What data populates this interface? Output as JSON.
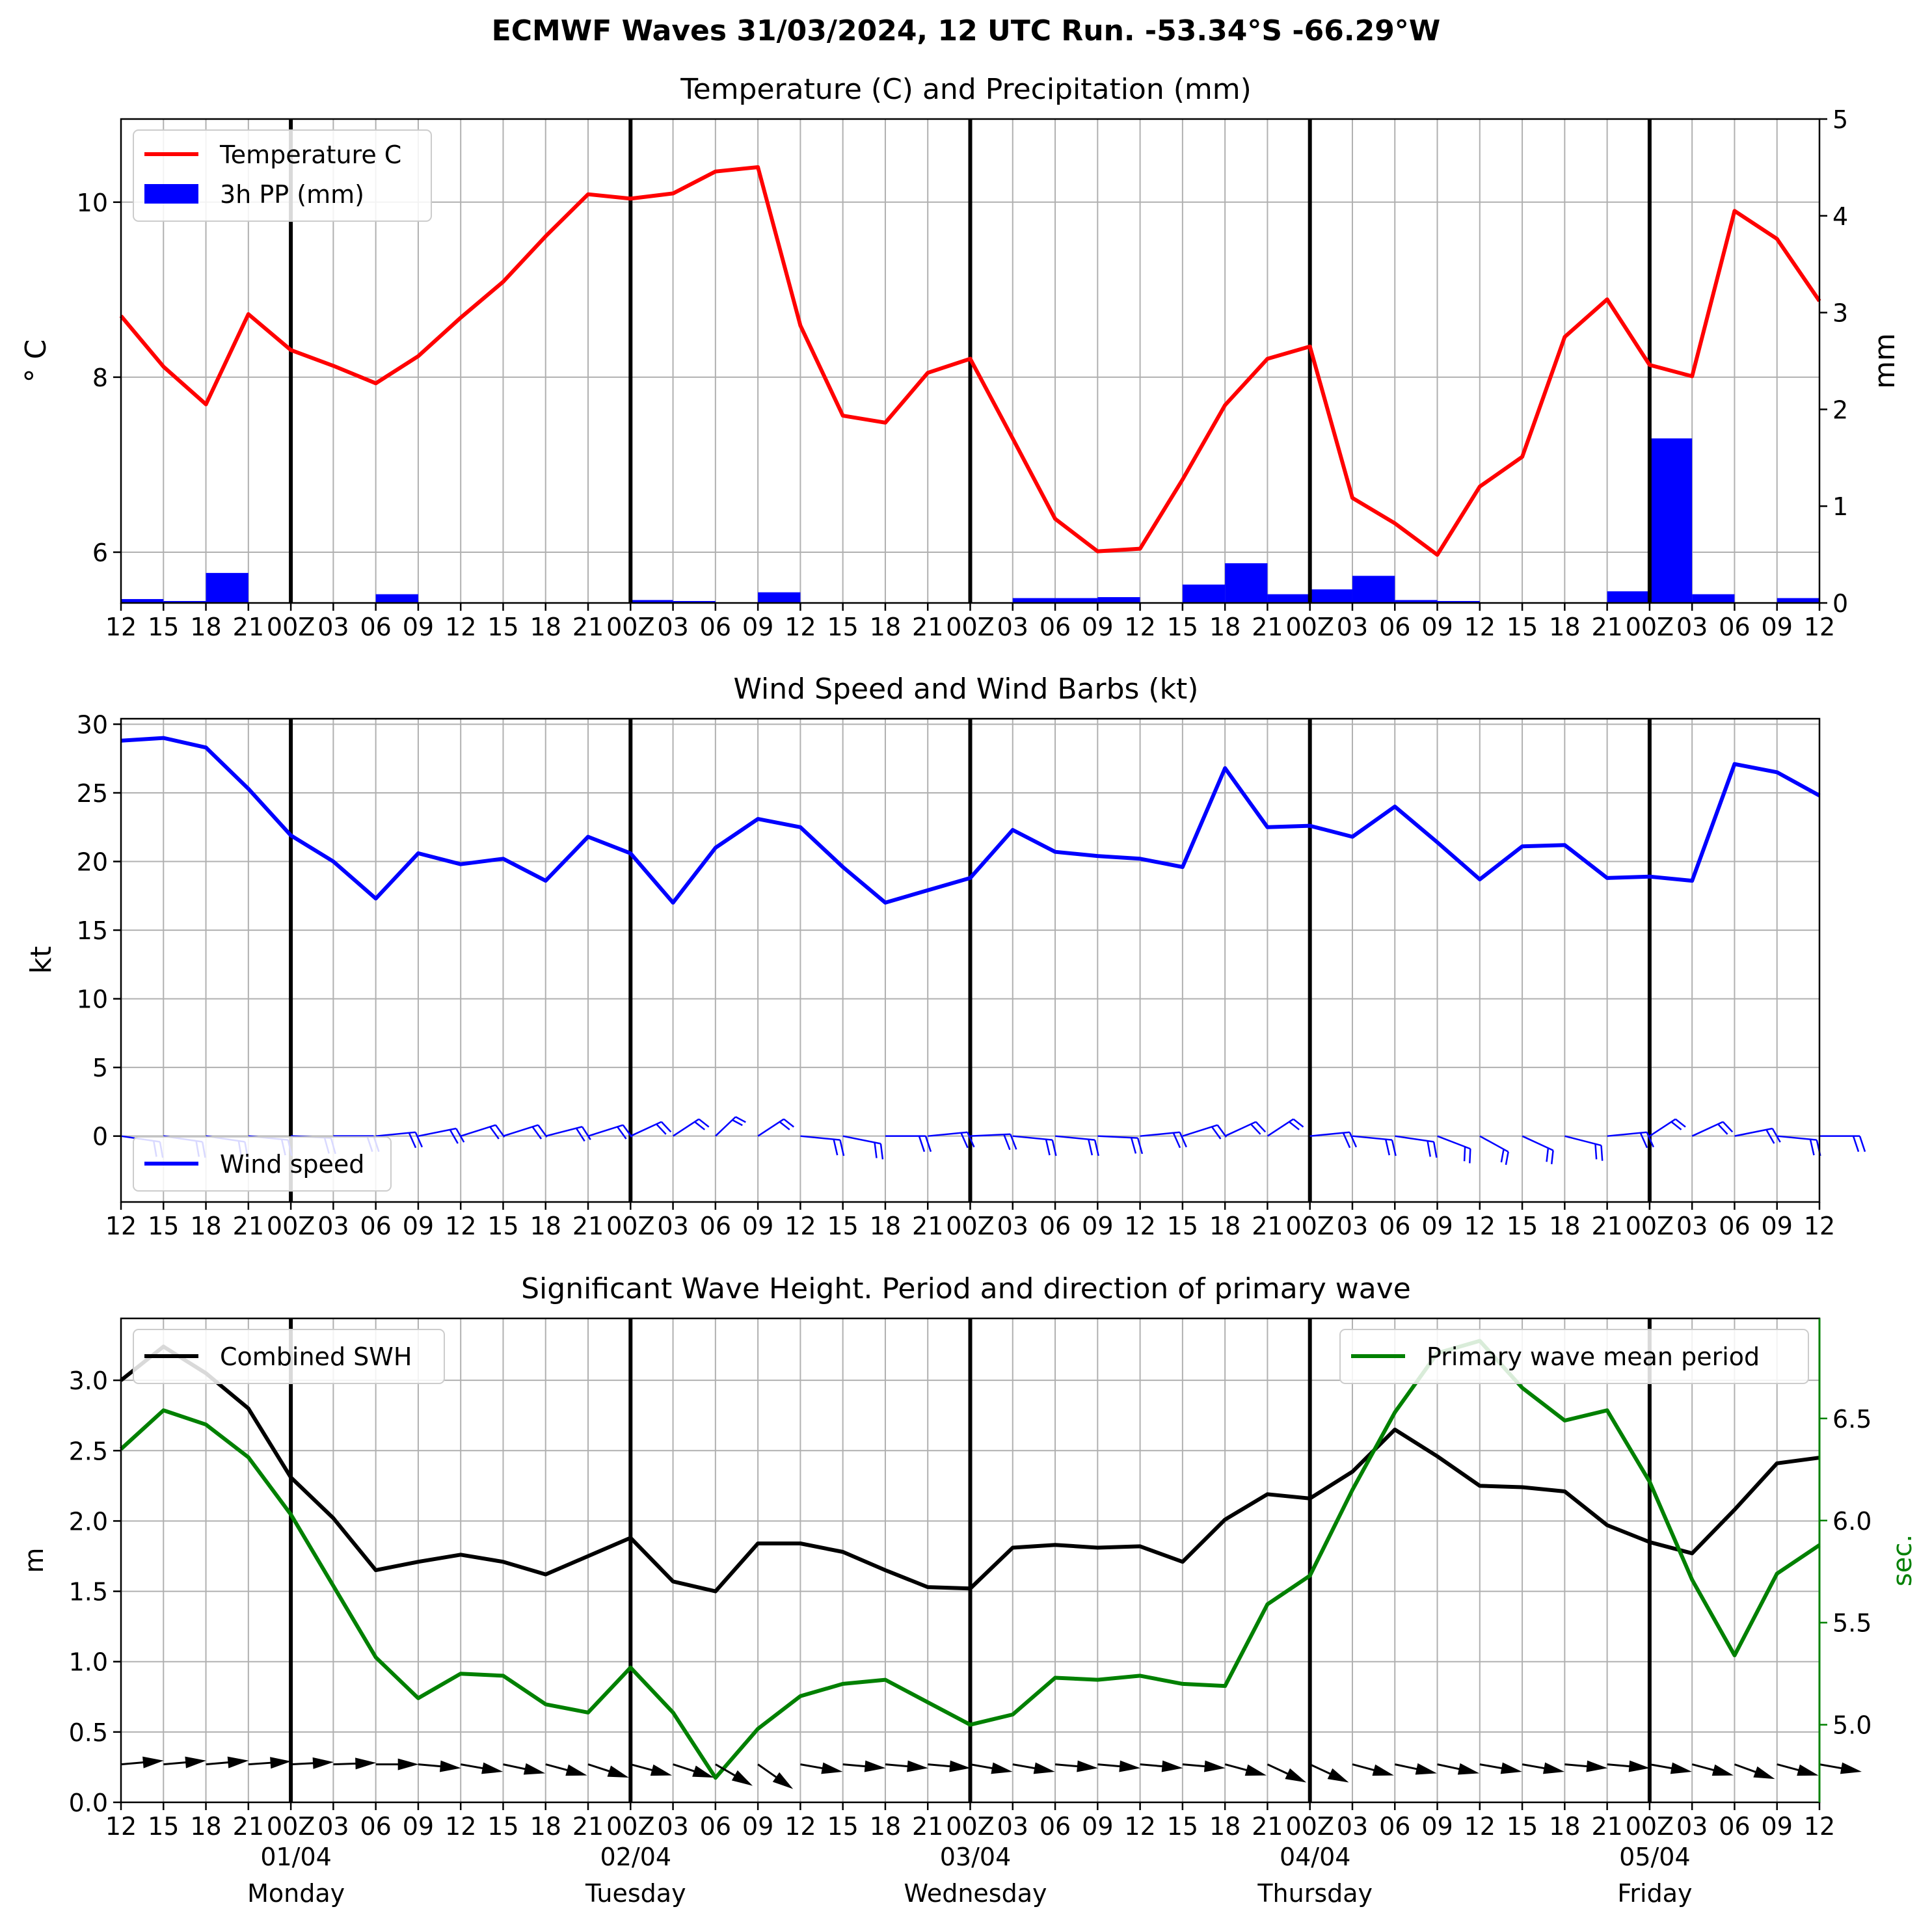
{
  "suptitle": "ECMWF Waves 31/03/2024, 12 UTC Run. -53.34°S -66.29°W",
  "x_hour_labels": [
    "12",
    "15",
    "18",
    "21",
    "00Z",
    "03",
    "06",
    "09",
    "12",
    "15",
    "18",
    "21",
    "00Z",
    "03",
    "06",
    "09",
    "12",
    "15",
    "18",
    "21",
    "00Z",
    "03",
    "06",
    "09",
    "12",
    "15",
    "18",
    "21",
    "00Z",
    "03",
    "06",
    "09",
    "12",
    "15",
    "18",
    "21",
    "00Z",
    "03",
    "06",
    "09",
    "12"
  ],
  "day_labels": [
    {
      "date": "01/04",
      "day": "Monday"
    },
    {
      "date": "02/04",
      "day": "Tuesday"
    },
    {
      "date": "03/04",
      "day": "Wednesday"
    },
    {
      "date": "04/04",
      "day": "Thursday"
    },
    {
      "date": "05/04",
      "day": "Friday"
    }
  ],
  "colors": {
    "temperature": "#ff0000",
    "precip": "#0000ff",
    "wind": "#0000ff",
    "swh": "#000000",
    "period": "#008000",
    "grid": "#b0b0b0"
  },
  "chart_data": [
    {
      "type": "line",
      "title": "Temperature (C) and Precipitation (mm)",
      "ylabel": "$^\\circ$C",
      "y2label": "mm",
      "ylim": [
        5.42,
        10.95
      ],
      "y_ticks": [
        6,
        8,
        10
      ],
      "y2lim": [
        0,
        5
      ],
      "y2_ticks": [
        0,
        1,
        2,
        3,
        4,
        5
      ],
      "legend_position": "upper-left",
      "grid": true,
      "series": [
        {
          "name": "Temperature C",
          "kind": "line",
          "values": [
            8.7,
            8.12,
            7.69,
            8.72,
            8.31,
            8.13,
            7.93,
            8.24,
            8.68,
            9.09,
            9.61,
            10.09,
            10.04,
            10.1,
            10.35,
            10.4,
            8.59,
            7.56,
            7.48,
            8.05,
            8.21,
            7.3,
            6.38,
            6.01,
            6.04,
            6.83,
            7.68,
            8.21,
            8.35,
            6.62,
            6.33,
            5.97,
            6.75,
            7.09,
            8.46,
            8.89,
            8.14,
            8.01,
            9.9,
            9.58,
            8.87
          ]
        },
        {
          "name": "3h PP (mm)",
          "kind": "bar",
          "axis": "right",
          "values": [
            0.04,
            0.02,
            0.31,
            0.0,
            0.0,
            0.0,
            0.09,
            0.0,
            0.0,
            0.0,
            0.0,
            0.0,
            0.03,
            0.02,
            0.0,
            0.11,
            0.0,
            0.0,
            0.0,
            0.0,
            0.0,
            0.05,
            0.05,
            0.06,
            0.0,
            0.19,
            0.41,
            0.09,
            0.14,
            0.28,
            0.03,
            0.02,
            0.0,
            0.0,
            0.0,
            0.12,
            1.7,
            0.09,
            0.0,
            0.05
          ]
        }
      ]
    },
    {
      "type": "line",
      "title": "Wind Speed and Wind Barbs (kt)",
      "ylabel": "kt",
      "ylim": [
        -4.8,
        30.4
      ],
      "y_ticks": [
        0,
        5,
        10,
        15,
        20,
        25,
        30
      ],
      "legend_position": "lower-left",
      "grid": true,
      "series": [
        {
          "name": "Wind speed",
          "values": [
            28.8,
            29.0,
            28.3,
            25.3,
            21.9,
            20.0,
            17.3,
            20.6,
            19.8,
            20.2,
            18.6,
            21.8,
            20.6,
            17.0,
            21.0,
            23.1,
            22.5,
            19.6,
            17.0,
            17.9,
            18.8,
            22.3,
            20.7,
            20.4,
            20.2,
            19.6,
            26.8,
            22.5,
            22.6,
            21.8,
            24.0,
            21.4,
            18.7,
            21.1,
            21.2,
            18.8,
            18.9,
            18.6,
            27.1,
            26.5,
            24.8
          ]
        }
      ],
      "barb_angles_deg": [
        195,
        195,
        195,
        190,
        185,
        180,
        170,
        160,
        150,
        150,
        155,
        150,
        140,
        130,
        120,
        130,
        190,
        200,
        180,
        170,
        175,
        190,
        190,
        185,
        170,
        150,
        140,
        130,
        170,
        190,
        195,
        215,
        225,
        220,
        205,
        170,
        130,
        140,
        160,
        190,
        180
      ]
    },
    {
      "type": "line",
      "title": "Significant Wave Height. Period and direction of primary wave",
      "ylabel": "m",
      "y2label": "sec.",
      "ylim": [
        0.0,
        3.44
      ],
      "y_ticks": [
        0.0,
        0.5,
        1.0,
        1.5,
        2.0,
        2.5,
        3.0
      ],
      "y2lim": [
        4.62,
        6.99
      ],
      "y2_ticks": [
        5.0,
        5.5,
        6.0,
        6.5
      ],
      "grid": true,
      "series": [
        {
          "name": "Combined SWH",
          "axis": "left",
          "legend_position": "upper-left",
          "values": [
            3.0,
            3.24,
            3.05,
            2.8,
            2.31,
            2.02,
            1.65,
            1.71,
            1.76,
            1.71,
            1.62,
            1.75,
            1.88,
            1.57,
            1.5,
            1.84,
            1.84,
            1.78,
            1.65,
            1.53,
            1.52,
            1.81,
            1.83,
            1.81,
            1.82,
            1.71,
            2.01,
            2.19,
            2.16,
            2.35,
            2.65,
            2.46,
            2.25,
            2.24,
            2.21,
            1.97,
            1.85,
            1.77,
            2.08,
            2.41,
            2.45
          ]
        },
        {
          "name": "Primary wave mean period",
          "axis": "right",
          "legend_position": "upper-right",
          "values": [
            6.35,
            6.54,
            6.47,
            6.31,
            6.03,
            5.68,
            5.33,
            5.13,
            5.25,
            5.24,
            5.1,
            5.06,
            5.28,
            5.06,
            4.74,
            4.98,
            5.14,
            5.2,
            5.22,
            5.11,
            5.0,
            5.05,
            5.23,
            5.22,
            5.24,
            5.2,
            5.19,
            5.59,
            5.73,
            6.15,
            6.53,
            6.82,
            6.88,
            6.65,
            6.49,
            6.54,
            6.19,
            5.71,
            5.34,
            5.74,
            5.88
          ]
        }
      ],
      "arrow_angles_deg": [
        5,
        5,
        5,
        4,
        3,
        2,
        0,
        -5,
        -10,
        -12,
        -15,
        -18,
        -15,
        -18,
        -30,
        -35,
        -10,
        -5,
        -5,
        -5,
        -10,
        -10,
        -5,
        -5,
        -5,
        -5,
        -15,
        -25,
        -25,
        -15,
        -12,
        -12,
        -10,
        -10,
        -5,
        -5,
        -10,
        -15,
        -20,
        -15,
        -10
      ]
    }
  ]
}
